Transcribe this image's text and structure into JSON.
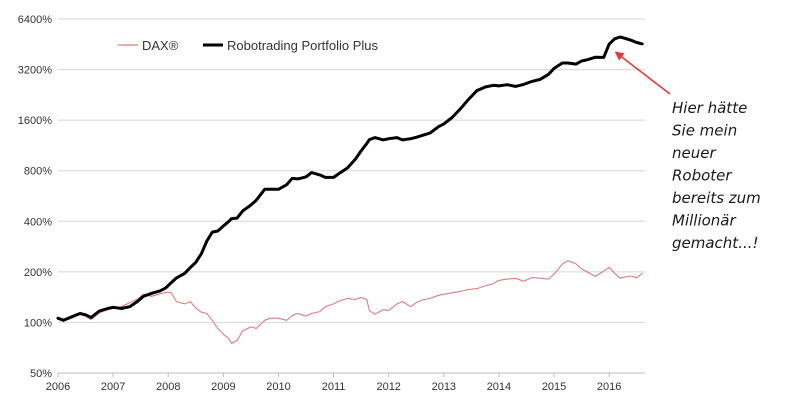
{
  "chart_data": {
    "type": "line",
    "title": "",
    "xlabel": "",
    "ylabel": "",
    "y_scale": "log2",
    "ylim": [
      50,
      6400
    ],
    "xlim": [
      2006.0,
      2016.65
    ],
    "y_ticks": [
      {
        "value": 50,
        "label": "50%"
      },
      {
        "value": 100,
        "label": "100%"
      },
      {
        "value": 200,
        "label": "200%"
      },
      {
        "value": 400,
        "label": "400%"
      },
      {
        "value": 800,
        "label": "800%"
      },
      {
        "value": 1600,
        "label": "1600%"
      },
      {
        "value": 3200,
        "label": "3200%"
      },
      {
        "value": 6400,
        "label": "6400%"
      }
    ],
    "x_ticks": [
      {
        "value": 2006,
        "label": "2006"
      },
      {
        "value": 2007,
        "label": "2007"
      },
      {
        "value": 2008,
        "label": "2008"
      },
      {
        "value": 2009,
        "label": "2009"
      },
      {
        "value": 2010,
        "label": "2010"
      },
      {
        "value": 2011,
        "label": "2011"
      },
      {
        "value": 2012,
        "label": "2012"
      },
      {
        "value": 2013,
        "label": "2013"
      },
      {
        "value": 2014,
        "label": "2014"
      },
      {
        "value": 2015,
        "label": "2015"
      },
      {
        "value": 2016,
        "label": "2016"
      }
    ],
    "grid": "horizontal",
    "legend_position": "top-left",
    "series": [
      {
        "name": "DAX®",
        "color": "#e07b7b",
        "x": [
          2006.0,
          2006.1,
          2006.25,
          2006.4,
          2006.5,
          2006.6,
          2006.75,
          2006.9,
          2007.0,
          2007.15,
          2007.3,
          2007.45,
          2007.55,
          2007.7,
          2007.85,
          2007.95,
          2008.05,
          2008.15,
          2008.3,
          2008.4,
          2008.5,
          2008.6,
          2008.7,
          2008.8,
          2008.9,
          2009.0,
          2009.1,
          2009.15,
          2009.25,
          2009.35,
          2009.5,
          2009.6,
          2009.75,
          2009.85,
          2010.0,
          2010.15,
          2010.25,
          2010.35,
          2010.5,
          2010.6,
          2010.75,
          2010.85,
          2011.0,
          2011.1,
          2011.25,
          2011.4,
          2011.5,
          2011.6,
          2011.65,
          2011.75,
          2011.9,
          2012.0,
          2012.15,
          2012.25,
          2012.4,
          2012.5,
          2012.6,
          2012.75,
          2012.9,
          2013.0,
          2013.15,
          2013.3,
          2013.45,
          2013.6,
          2013.75,
          2013.9,
          2014.0,
          2014.15,
          2014.3,
          2014.45,
          2014.6,
          2014.75,
          2014.9,
          2015.0,
          2015.15,
          2015.25,
          2015.4,
          2015.5,
          2015.6,
          2015.75,
          2015.9,
          2016.0,
          2016.1,
          2016.2,
          2016.3,
          2016.4,
          2016.5,
          2016.6
        ],
        "values": [
          105,
          102,
          106,
          112,
          109,
          104,
          114,
          119,
          121,
          124,
          131,
          138,
          147,
          143,
          148,
          151,
          151,
          133,
          129,
          133,
          122,
          115,
          113,
          103,
          92,
          85,
          80,
          75,
          78,
          89,
          94,
          92,
          103,
          106,
          106,
          103,
          110,
          113,
          109,
          113,
          116,
          124,
          129,
          134,
          139,
          137,
          141,
          137,
          118,
          112,
          119,
          118,
          129,
          133,
          124,
          131,
          136,
          139,
          145,
          147,
          150,
          153,
          157,
          159,
          165,
          170,
          178,
          181,
          183,
          176,
          185,
          183,
          181,
          194,
          222,
          233,
          223,
          208,
          200,
          188,
          202,
          213,
          196,
          183,
          187,
          189,
          184,
          196
        ]
      },
      {
        "name": "Robotrading Portfolio Plus",
        "color": "#000000",
        "x": [
          2006.0,
          2006.1,
          2006.25,
          2006.4,
          2006.5,
          2006.6,
          2006.75,
          2006.9,
          2007.0,
          2007.15,
          2007.3,
          2007.45,
          2007.55,
          2007.7,
          2007.85,
          2007.95,
          2008.05,
          2008.15,
          2008.3,
          2008.4,
          2008.5,
          2008.6,
          2008.7,
          2008.8,
          2008.9,
          2009.0,
          2009.1,
          2009.15,
          2009.25,
          2009.35,
          2009.5,
          2009.6,
          2009.75,
          2009.85,
          2010.0,
          2010.15,
          2010.25,
          2010.35,
          2010.5,
          2010.6,
          2010.75,
          2010.85,
          2011.0,
          2011.1,
          2011.25,
          2011.4,
          2011.5,
          2011.6,
          2011.65,
          2011.75,
          2011.9,
          2012.0,
          2012.15,
          2012.25,
          2012.4,
          2012.5,
          2012.6,
          2012.75,
          2012.9,
          2013.0,
          2013.15,
          2013.3,
          2013.45,
          2013.6,
          2013.75,
          2013.9,
          2014.0,
          2014.15,
          2014.3,
          2014.45,
          2014.6,
          2014.75,
          2014.9,
          2015.0,
          2015.15,
          2015.25,
          2015.4,
          2015.5,
          2015.6,
          2015.75,
          2015.9,
          2016.0,
          2016.1,
          2016.2,
          2016.3,
          2016.4,
          2016.5,
          2016.6
        ],
        "values": [
          106,
          103,
          108,
          113,
          111,
          107,
          117,
          121,
          123,
          121,
          124,
          134,
          143,
          149,
          154,
          160,
          172,
          184,
          196,
          212,
          228,
          256,
          305,
          345,
          350,
          375,
          400,
          415,
          418,
          460,
          500,
          535,
          620,
          620,
          620,
          660,
          720,
          715,
          735,
          780,
          755,
          730,
          730,
          770,
          830,
          940,
          1050,
          1160,
          1225,
          1260,
          1220,
          1240,
          1260,
          1220,
          1240,
          1265,
          1295,
          1340,
          1460,
          1520,
          1660,
          1870,
          2130,
          2400,
          2520,
          2580,
          2560,
          2600,
          2540,
          2610,
          2720,
          2800,
          3000,
          3250,
          3500,
          3500,
          3450,
          3600,
          3660,
          3790,
          3780,
          4540,
          4880,
          5000,
          4890,
          4780,
          4640,
          4550
        ]
      }
    ],
    "annotation": {
      "lines": [
        "Hier hätte",
        "Sie mein",
        "neuer",
        "Roboter",
        "bereits zum",
        "Millionär",
        "gemacht...!"
      ],
      "arrow_target": {
        "x": 2016.1,
        "y": 4100
      },
      "color": "#e53935"
    }
  }
}
